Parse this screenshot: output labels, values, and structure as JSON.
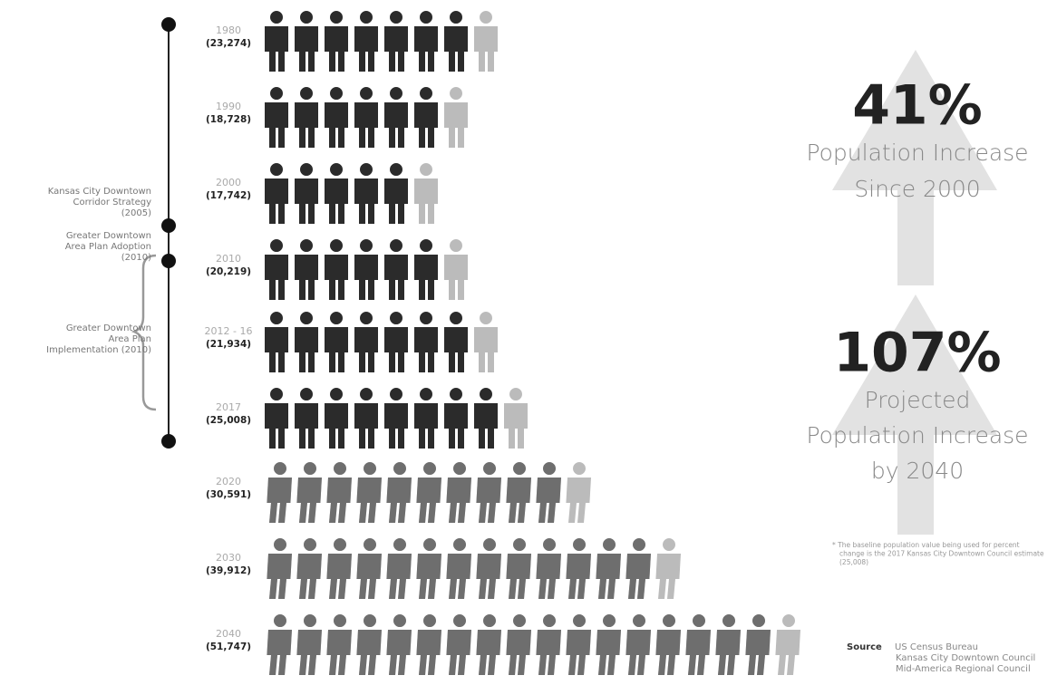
{
  "chart_data": {
    "type": "pictogram",
    "categories": [
      "1980",
      "1990",
      "2000",
      "2010",
      "2012 - 16",
      "2017",
      "2020",
      "2030",
      "2040"
    ],
    "values": [
      23274,
      18728,
      17742,
      20219,
      21934,
      25008,
      30591,
      39912,
      51747
    ],
    "value_labels": [
      "(23,274)",
      "(18,728)",
      "(17,742)",
      "(20,219)",
      "(21,934)",
      "(25,008)",
      "(30,591)",
      "(39,912)",
      "(51,747)"
    ],
    "colors": [
      "#2b2b2b",
      "#2b2b2b",
      "#2b2b2b",
      "#2b2b2b",
      "#2b2b2b",
      "#2b2b2b",
      "#6e6e6e",
      "#6e6e6e",
      "#6e6e6e"
    ],
    "timeline": [
      "Kansas City Downtown Corridor Strategy (2005)",
      "Greater Downtown Area Plan Adoption (2010)",
      "Greater Downtown Area Plan Implementation (2010)"
    ],
    "stats": [
      {
        "figure": "41%",
        "lines": [
          "Population Increase",
          "Since 2000"
        ]
      },
      {
        "figure": "107%",
        "lines": [
          "Projected",
          "Population Increase",
          "by 2040"
        ]
      }
    ],
    "footnote": "* The baseline population value being used for percent change is the 2017 Kansas City Downtown Council estimate (25,008)",
    "source": {
      "label": "Source",
      "lines": [
        "US Census Bureau",
        "Kansas City Downtown Council",
        "Mid-America Regional Council"
      ]
    }
  }
}
